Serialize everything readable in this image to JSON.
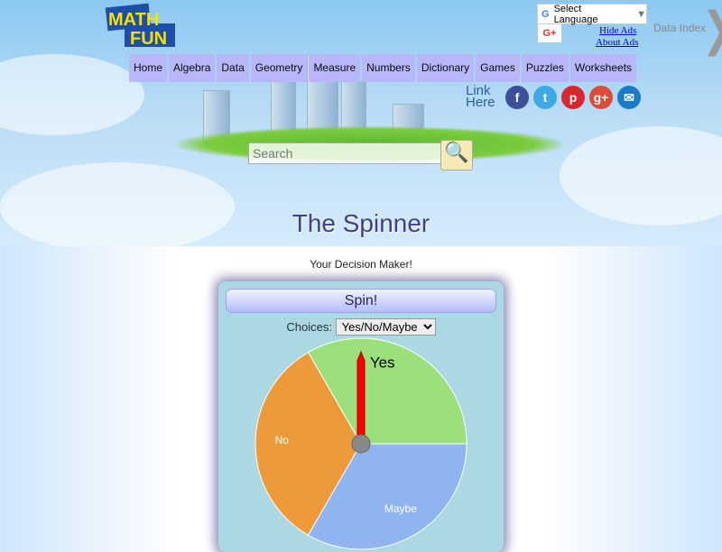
{
  "header": {
    "logo_text": "MATH IS FUN",
    "language_label": "Select Language",
    "gplus_label": "G+",
    "hide_ads": "Hide Ads",
    "about_ads": "About Ads",
    "data_index": "Data Index",
    "nav": [
      "Home",
      "Algebra",
      "Data",
      "Geometry",
      "Measure",
      "Numbers",
      "Dictionary",
      "Games",
      "Puzzles",
      "Worksheets"
    ],
    "link_here": [
      "Link",
      "Here"
    ],
    "social": [
      {
        "icon": "facebook-icon",
        "glyph": "f",
        "color": "#3b4f9a"
      },
      {
        "icon": "twitter-icon",
        "glyph": "t",
        "color": "#3fa9e6"
      },
      {
        "icon": "pinterest-icon",
        "glyph": "p",
        "color": "#d9252e"
      },
      {
        "icon": "google-plus-icon",
        "glyph": "g+",
        "color": "#dd4b39"
      },
      {
        "icon": "email-icon",
        "glyph": "✉",
        "color": "#1a7bc8"
      }
    ],
    "search_placeholder": "Search"
  },
  "page": {
    "title": "The Spinner",
    "subtitle": "Your Decision Maker!"
  },
  "spinner": {
    "spin_label": "Spin!",
    "choices_label": "Choices:",
    "choices_value": "Yes/No/Maybe",
    "slices": [
      {
        "label": "Yes",
        "color": "#9be07a"
      },
      {
        "label": "No",
        "color": "#ec9a3a"
      },
      {
        "label": "Maybe",
        "color": "#8fb4f0"
      }
    ],
    "pointer_color": "#ff0000"
  }
}
